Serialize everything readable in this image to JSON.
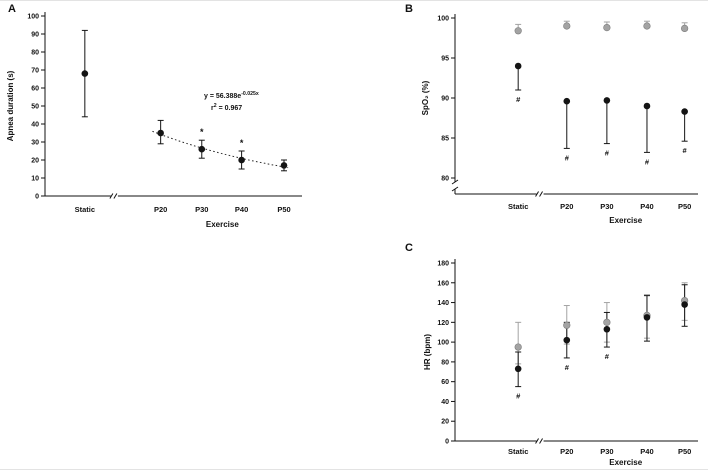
{
  "figure": {
    "background": "#ffffff"
  },
  "chart_data": [
    {
      "id": "A",
      "panel_label": "A",
      "type": "scatter",
      "ylabel": "Apnea duration (s)",
      "ylim": [
        0,
        100
      ],
      "yticks": [
        0,
        10,
        20,
        30,
        40,
        50,
        60,
        70,
        80,
        90,
        100
      ],
      "categories": [
        "Static",
        "P20",
        "P30",
        "P40",
        "P50"
      ],
      "group_label": "Exercise",
      "x_axis_break": true,
      "category_pos": [
        0.155,
        0.45,
        0.61,
        0.765,
        0.93
      ],
      "break_pos": 0.27,
      "series": [
        {
          "name": "black-series",
          "color": "#141414",
          "values": [
            68,
            35,
            26,
            20,
            17
          ],
          "err_low": [
            44,
            29,
            21,
            15,
            14
          ],
          "err_high": [
            92,
            42,
            31,
            25,
            20
          ],
          "sig_above": [
            "",
            "",
            "*",
            "*",
            ""
          ],
          "sig_below": [
            "",
            "",
            "",
            "",
            ""
          ]
        }
      ],
      "trend": {
        "style": "dotted",
        "a": 56.388,
        "b": -0.025,
        "x_start": 18,
        "x_end": 51,
        "x_ref": [
          20,
          50
        ]
      },
      "annotation": {
        "eq_base": "y = 56.388e",
        "eq_sup": "-0.025x",
        "r2_base": "r",
        "r2_sup": "2",
        "r2_rest": " = 0.967"
      }
    },
    {
      "id": "B",
      "panel_label": "B",
      "type": "scatter",
      "ylabel": "SpO₂ (%)",
      "ylim": [
        80,
        100
      ],
      "yticks": [
        80,
        85,
        90,
        95,
        100
      ],
      "y_axis_break": true,
      "categories": [
        "Static",
        "P20",
        "P30",
        "P40",
        "P50"
      ],
      "group_label": "Exercise",
      "x_axis_break": true,
      "category_pos": [
        0.26,
        0.46,
        0.625,
        0.79,
        0.945
      ],
      "break_pos": 0.35,
      "series": [
        {
          "name": "gray-series",
          "color": "#a3a3a3",
          "stroke": "#7c7c7c",
          "values": [
            98.4,
            99.0,
            98.8,
            99.0,
            98.7
          ],
          "err_low": [
            98.4,
            99.0,
            98.8,
            99.0,
            98.7
          ],
          "err_high": [
            99.2,
            99.6,
            99.5,
            99.6,
            99.4
          ],
          "sig_above": [
            "",
            "",
            "",
            "",
            ""
          ],
          "sig_below": [
            "",
            "",
            "",
            "",
            ""
          ]
        },
        {
          "name": "black-series",
          "color": "#141414",
          "values": [
            94.0,
            89.6,
            89.7,
            89.0,
            88.3
          ],
          "err_low": [
            91.0,
            83.7,
            84.3,
            83.2,
            84.6
          ],
          "err_high": [
            94.0,
            89.6,
            89.7,
            89.0,
            88.3
          ],
          "sig_above": [
            "",
            "",
            "",
            "",
            ""
          ],
          "sig_below": [
            "#",
            "#",
            "#",
            "#",
            "#"
          ]
        }
      ]
    },
    {
      "id": "C",
      "panel_label": "C",
      "type": "scatter",
      "ylabel": "HR (bpm)",
      "ylim": [
        0,
        180
      ],
      "yticks": [
        0,
        20,
        40,
        60,
        80,
        100,
        120,
        140,
        160,
        180
      ],
      "categories": [
        "Static",
        "P20",
        "P30",
        "P40",
        "P50"
      ],
      "group_label": "Exercise",
      "x_axis_break": true,
      "category_pos": [
        0.26,
        0.46,
        0.625,
        0.79,
        0.945
      ],
      "break_pos": 0.35,
      "series": [
        {
          "name": "gray-series",
          "color": "#a3a3a3",
          "stroke": "#7c7c7c",
          "values": [
            95,
            117,
            120,
            127,
            142
          ],
          "err_low": [
            78,
            98,
            100,
            104,
            122
          ],
          "err_high": [
            120,
            137,
            140,
            148,
            160
          ],
          "sig_above": [
            "",
            "",
            "",
            "",
            ""
          ],
          "sig_below": [
            "",
            "",
            "",
            "",
            ""
          ]
        },
        {
          "name": "black-series",
          "color": "#141414",
          "values": [
            73,
            102,
            113,
            125,
            138
          ],
          "err_low": [
            55,
            84,
            95,
            101,
            116
          ],
          "err_high": [
            90,
            120,
            130,
            147,
            158
          ],
          "sig_above": [
            "",
            "",
            "",
            "",
            ""
          ],
          "sig_below": [
            "#",
            "#",
            "#",
            "",
            ""
          ]
        }
      ]
    }
  ]
}
